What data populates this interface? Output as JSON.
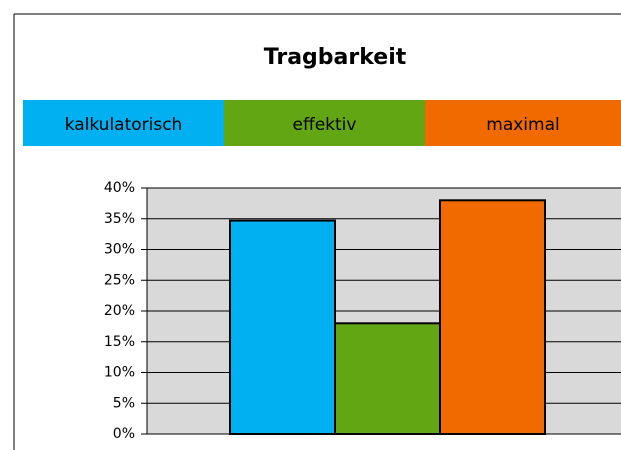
{
  "chart_data": {
    "type": "bar",
    "title": "Tragbarkeit",
    "categories": [
      "kalkulatorisch",
      "effektiv",
      "maximal"
    ],
    "values": [
      34.7,
      18,
      38
    ],
    "colors": [
      "#00b0f0",
      "#63a614",
      "#f06a00"
    ],
    "ylim": [
      0,
      40
    ],
    "yticks": [
      {
        "value": 0,
        "label": "0%"
      },
      {
        "value": 5,
        "label": "5%"
      },
      {
        "value": 10,
        "label": "10%"
      },
      {
        "value": 15,
        "label": "15%"
      },
      {
        "value": 20,
        "label": "20%"
      },
      {
        "value": 25,
        "label": "25%"
      },
      {
        "value": 30,
        "label": "30%"
      },
      {
        "value": 35,
        "label": "35%"
      },
      {
        "value": 40,
        "label": "40%"
      }
    ],
    "grid": true
  }
}
